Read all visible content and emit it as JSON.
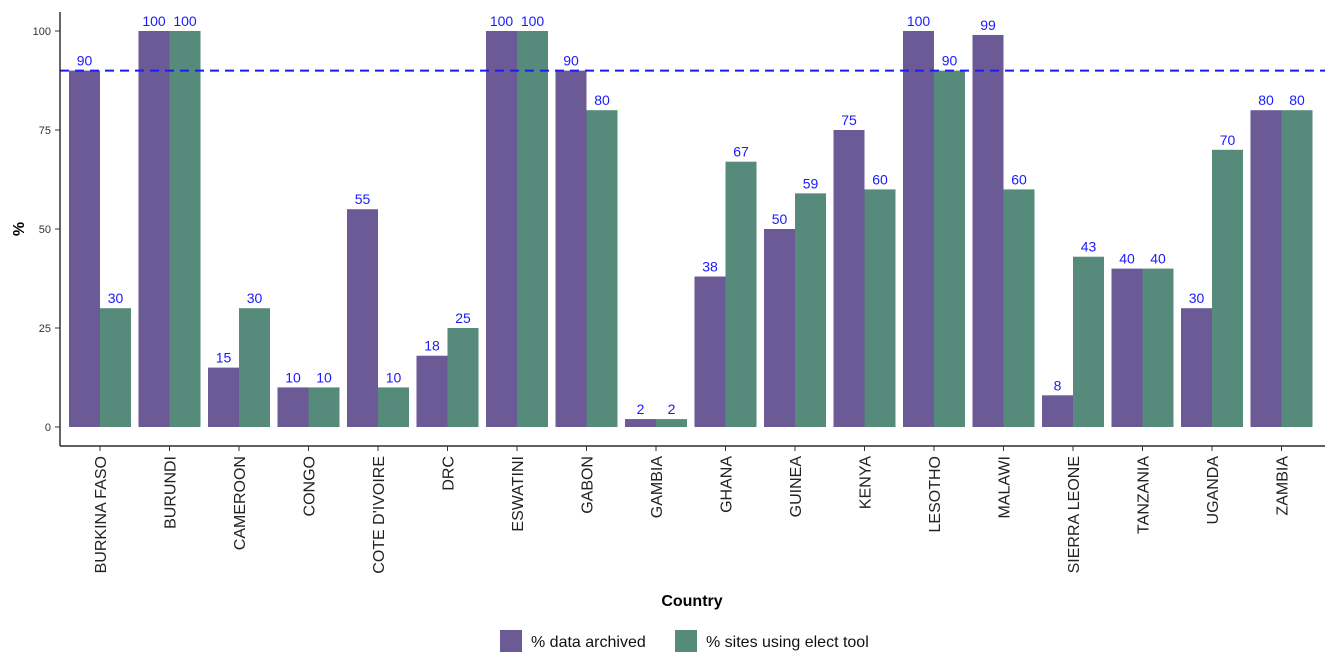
{
  "chart_data": {
    "type": "bar",
    "xlabel": "Country",
    "ylabel": "%",
    "ylim": [
      0,
      100
    ],
    "yticks": [
      0,
      25,
      50,
      75,
      100
    ],
    "grid": false,
    "legend_position": "bottom",
    "reference_line": {
      "value": 90,
      "style": "dashed",
      "color": "#1a1aff"
    },
    "value_label_color": "#1a1aff",
    "categories": [
      "BURKINA FASO",
      "BURUNDI",
      "CAMEROON",
      "CONGO",
      "COTE D'IVOIRE",
      "DRC",
      "ESWATINI",
      "GABON",
      "GAMBIA",
      "GHANA",
      "GUINEA",
      "KENYA",
      "LESOTHO",
      "MALAWI",
      "SIERRA LEONE",
      "TANZANIA",
      "UGANDA",
      "ZAMBIA"
    ],
    "series": [
      {
        "name": "% data archived",
        "color": "#6b5a95",
        "values": [
          90,
          100,
          15,
          10,
          55,
          18,
          100,
          90,
          2,
          38,
          50,
          75,
          100,
          99,
          8,
          40,
          30,
          80
        ]
      },
      {
        "name": "% sites using elect tool",
        "color": "#568b7b",
        "values": [
          30,
          100,
          30,
          10,
          10,
          25,
          100,
          80,
          2,
          67,
          59,
          60,
          90,
          60,
          43,
          40,
          70,
          80
        ]
      }
    ]
  }
}
